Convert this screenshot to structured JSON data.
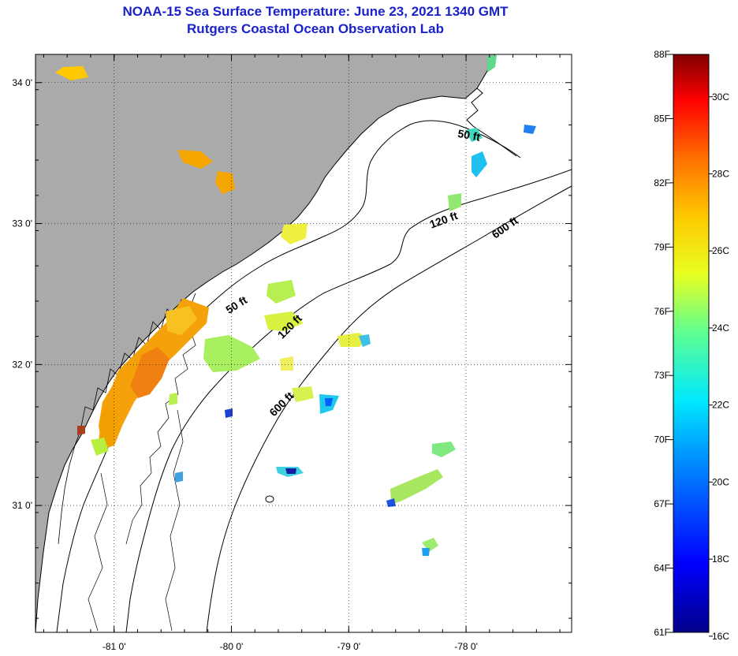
{
  "title": {
    "line1": "NOAA-15 Sea Surface Temperature:  June 23, 2021 1340 GMT",
    "line2": "Rutgers Coastal Ocean Observation Lab"
  },
  "map": {
    "lon_range": [
      -81.67,
      -77.1
    ],
    "lat_range": [
      30.1,
      34.2
    ],
    "lon_ticks": [
      {
        "value": -81,
        "label": "-81 0'"
      },
      {
        "value": -80,
        "label": "-80 0'"
      },
      {
        "value": -79,
        "label": "-79 0'"
      },
      {
        "value": -78,
        "label": "-78 0'"
      }
    ],
    "lat_ticks": [
      {
        "value": 34,
        "label": "34 0'"
      },
      {
        "value": 33,
        "label": "33 0'"
      },
      {
        "value": 32,
        "label": "32 0'"
      },
      {
        "value": 31,
        "label": "31 0'"
      }
    ],
    "contours": [
      {
        "name": "50 ft",
        "label": "50 ft"
      },
      {
        "name": "120 ft",
        "label": "120 ft"
      },
      {
        "name": "600 ft",
        "label": "600 ft"
      }
    ],
    "contour_labels": [
      {
        "text": "50 ft",
        "lon": -77.98,
        "lat": 33.6,
        "angle": 10
      },
      {
        "text": "50 ft",
        "lon": -79.94,
        "lat": 32.4,
        "angle": -32
      },
      {
        "text": "120 ft",
        "lon": -78.18,
        "lat": 33.0,
        "angle": -20
      },
      {
        "text": "120 ft",
        "lon": -79.48,
        "lat": 32.25,
        "angle": -45
      },
      {
        "text": "600 ft",
        "lon": -77.65,
        "lat": 32.95,
        "angle": -35
      },
      {
        "text": "600 ft",
        "lon": -79.55,
        "lat": 31.7,
        "angle": -45
      }
    ],
    "colors": {
      "land": "#aaaaaa",
      "sea": "#ffffff",
      "coastline": "#000000"
    }
  },
  "colorbar": {
    "fahrenheit": [
      "88F",
      "85F",
      "82F",
      "79F",
      "76F",
      "73F",
      "70F",
      "67F",
      "64F",
      "61F"
    ],
    "celsius": [
      "30C",
      "28C",
      "26C",
      "24C",
      "22C",
      "20C",
      "18C",
      "16C"
    ],
    "range_f": [
      61,
      88
    ],
    "range_c": [
      16.1,
      31.1
    ]
  }
}
